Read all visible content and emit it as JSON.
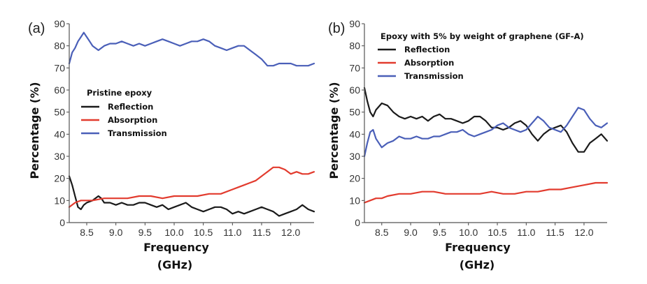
{
  "chart_data": [
    {
      "panel": "(a)",
      "type": "line",
      "legend_title": "Pristine epoxy",
      "xlabel": "Frequency",
      "xlabel_unit": "(GHz)",
      "ylabel": "Percentage (%)",
      "xlim": [
        8.2,
        12.4
      ],
      "ylim": [
        0,
        90
      ],
      "xticks": [
        "8.5",
        "9.0",
        "9.5",
        "10.0",
        "10.5",
        "11.0",
        "11.5",
        "12.0"
      ],
      "yticks": [
        "0",
        "10",
        "20",
        "30",
        "40",
        "50",
        "60",
        "70",
        "80",
        "90"
      ],
      "series": [
        {
          "name": "Reflection",
          "color": "#1a1a1a",
          "x": [
            8.2,
            8.25,
            8.3,
            8.35,
            8.4,
            8.45,
            8.5,
            8.6,
            8.7,
            8.75,
            8.8,
            8.9,
            9.0,
            9.1,
            9.2,
            9.3,
            9.4,
            9.5,
            9.6,
            9.7,
            9.8,
            9.9,
            10.0,
            10.1,
            10.2,
            10.3,
            10.4,
            10.5,
            10.6,
            10.7,
            10.8,
            10.9,
            11.0,
            11.1,
            11.2,
            11.3,
            11.4,
            11.5,
            11.6,
            11.7,
            11.8,
            11.9,
            12.0,
            12.1,
            12.2,
            12.3,
            12.4
          ],
          "y": [
            21,
            17,
            12,
            7,
            6,
            8,
            9,
            10,
            12,
            11,
            9,
            9,
            8,
            9,
            8,
            8,
            9,
            9,
            8,
            7,
            8,
            6,
            7,
            8,
            9,
            7,
            6,
            5,
            6,
            7,
            7,
            6,
            4,
            5,
            4,
            5,
            6,
            7,
            6,
            5,
            3,
            4,
            5,
            6,
            8,
            6,
            5
          ]
        },
        {
          "name": "Absorption",
          "color": "#e23b2e",
          "x": [
            8.2,
            8.3,
            8.4,
            8.5,
            8.6,
            8.8,
            9.0,
            9.2,
            9.4,
            9.6,
            9.8,
            10.0,
            10.2,
            10.4,
            10.6,
            10.8,
            11.0,
            11.1,
            11.2,
            11.3,
            11.4,
            11.5,
            11.6,
            11.7,
            11.8,
            11.9,
            12.0,
            12.1,
            12.2,
            12.3,
            12.4
          ],
          "y": [
            7,
            9,
            10,
            10,
            10,
            11,
            11,
            11,
            12,
            12,
            11,
            12,
            12,
            12,
            13,
            13,
            15,
            16,
            17,
            18,
            19,
            21,
            23,
            25,
            25,
            24,
            22,
            23,
            22,
            22,
            23
          ]
        },
        {
          "name": "Transmission",
          "color": "#4a5fb8",
          "x": [
            8.2,
            8.25,
            8.3,
            8.35,
            8.4,
            8.45,
            8.5,
            8.55,
            8.6,
            8.7,
            8.8,
            8.9,
            9.0,
            9.1,
            9.2,
            9.3,
            9.4,
            9.5,
            9.6,
            9.7,
            9.8,
            9.9,
            10.0,
            10.1,
            10.2,
            10.3,
            10.4,
            10.5,
            10.6,
            10.7,
            10.8,
            10.9,
            11.0,
            11.1,
            11.2,
            11.3,
            11.4,
            11.5,
            11.6,
            11.7,
            11.8,
            11.9,
            12.0,
            12.1,
            12.2,
            12.3,
            12.4
          ],
          "y": [
            72,
            77,
            79,
            82,
            84,
            86,
            84,
            82,
            80,
            78,
            80,
            81,
            81,
            82,
            81,
            80,
            81,
            80,
            81,
            82,
            83,
            82,
            81,
            80,
            81,
            82,
            82,
            83,
            82,
            80,
            79,
            78,
            79,
            80,
            80,
            78,
            76,
            74,
            71,
            71,
            72,
            72,
            72,
            71,
            71,
            71,
            72
          ]
        }
      ]
    },
    {
      "panel": "(b)",
      "type": "line",
      "legend_title": "Epoxy with 5% by weight of graphene (GF-A)",
      "xlabel": "Frequency",
      "xlabel_unit": "(GHz)",
      "ylabel": "Percentage (%)",
      "xlim": [
        8.2,
        12.4
      ],
      "ylim": [
        0,
        90
      ],
      "xticks": [
        "8.5",
        "9.0",
        "9.5",
        "10.0",
        "10.5",
        "11.0",
        "11.5",
        "12.0"
      ],
      "yticks": [
        "0",
        "10",
        "20",
        "30",
        "40",
        "50",
        "60",
        "70",
        "80",
        "90"
      ],
      "series": [
        {
          "name": "Reflection",
          "color": "#1a1a1a",
          "x": [
            8.2,
            8.25,
            8.3,
            8.35,
            8.4,
            8.5,
            8.6,
            8.7,
            8.8,
            8.9,
            9.0,
            9.1,
            9.2,
            9.3,
            9.4,
            9.5,
            9.6,
            9.7,
            9.8,
            9.9,
            10.0,
            10.1,
            10.2,
            10.3,
            10.4,
            10.5,
            10.6,
            10.7,
            10.8,
            10.9,
            11.0,
            11.1,
            11.2,
            11.3,
            11.4,
            11.5,
            11.6,
            11.7,
            11.8,
            11.9,
            12.0,
            12.1,
            12.2,
            12.3,
            12.4
          ],
          "y": [
            61,
            55,
            50,
            48,
            51,
            54,
            53,
            50,
            48,
            47,
            48,
            47,
            48,
            46,
            48,
            49,
            47,
            47,
            46,
            45,
            46,
            48,
            48,
            46,
            43,
            43,
            42,
            43,
            45,
            46,
            44,
            40,
            37,
            40,
            42,
            43,
            44,
            41,
            36,
            32,
            32,
            36,
            38,
            40,
            37
          ]
        },
        {
          "name": "Absorption",
          "color": "#e23b2e",
          "x": [
            8.2,
            8.3,
            8.4,
            8.5,
            8.6,
            8.8,
            9.0,
            9.2,
            9.4,
            9.6,
            9.8,
            10.0,
            10.2,
            10.4,
            10.6,
            10.8,
            11.0,
            11.2,
            11.4,
            11.6,
            11.8,
            12.0,
            12.2,
            12.3,
            12.4
          ],
          "y": [
            9,
            10,
            11,
            11,
            12,
            13,
            13,
            14,
            14,
            13,
            13,
            13,
            13,
            14,
            13,
            13,
            14,
            14,
            15,
            15,
            16,
            17,
            18,
            18,
            18
          ]
        },
        {
          "name": "Transmission",
          "color": "#4a5fb8",
          "x": [
            8.2,
            8.25,
            8.3,
            8.35,
            8.4,
            8.5,
            8.6,
            8.7,
            8.8,
            8.9,
            9.0,
            9.1,
            9.2,
            9.3,
            9.4,
            9.5,
            9.6,
            9.7,
            9.8,
            9.9,
            10.0,
            10.1,
            10.2,
            10.3,
            10.4,
            10.5,
            10.6,
            10.7,
            10.8,
            10.9,
            11.0,
            11.1,
            11.2,
            11.3,
            11.4,
            11.5,
            11.6,
            11.7,
            11.8,
            11.9,
            12.0,
            12.1,
            12.2,
            12.3,
            12.4
          ],
          "y": [
            30,
            36,
            41,
            42,
            38,
            34,
            36,
            37,
            39,
            38,
            38,
            39,
            38,
            38,
            39,
            39,
            40,
            41,
            41,
            42,
            40,
            39,
            40,
            41,
            42,
            44,
            45,
            43,
            42,
            41,
            42,
            45,
            48,
            46,
            43,
            42,
            41,
            44,
            48,
            52,
            51,
            47,
            44,
            43,
            45
          ]
        }
      ]
    }
  ]
}
